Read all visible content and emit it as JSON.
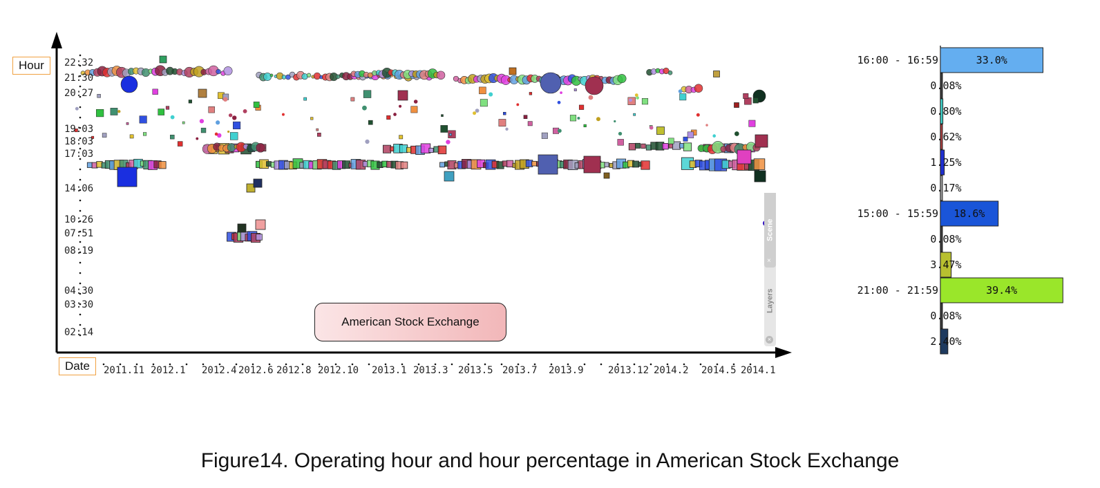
{
  "caption": "Figure14. Operating hour and hour percentage in American Stock Exchange",
  "labels": {
    "hour": "Hour",
    "date": "Date",
    "exchange": "American Stock Exchange"
  },
  "panel": {
    "scene": "Scene",
    "layers": "Layers",
    "close": "×"
  },
  "chart_data": [
    {
      "type": "scatter",
      "xlabel": "Date",
      "ylabel": "Hour",
      "x_ticks": [
        "2011.11",
        "2012.1",
        "2012.4",
        "2012.6",
        "2012.8",
        "2012.10",
        "2013.1",
        "2013.3",
        "2013.5",
        "2013.7",
        "2013.9",
        "2013.12",
        "2014.2",
        "2014.5",
        "2014.1"
      ],
      "y_ticks": [
        "22:32",
        "21:30",
        "20:27",
        "19:03",
        "18:03",
        "17:03",
        "14:06",
        "10:26",
        "07:51",
        "08:19",
        "04:30",
        "03:30",
        "02:14"
      ],
      "annotation": "American Stock Exchange",
      "series": [
        {
          "cluster": "21:30",
          "date_range": [
            "2011.11",
            "2014.1"
          ],
          "marker": "circle"
        },
        {
          "cluster": "17:03",
          "date_range": [
            "2011.11",
            "2014.1"
          ],
          "marker": "square"
        },
        {
          "cluster": "07:51",
          "date_range": [
            "2012.4",
            "2012.6"
          ],
          "marker": "square"
        }
      ]
    },
    {
      "type": "bar",
      "orientation": "horizontal",
      "categories": [
        "16:00 - 16:59",
        "",
        "",
        "",
        "",
        "",
        "15:00 - 15:59",
        "",
        "",
        "21:00 - 21:59",
        "",
        ""
      ],
      "values": [
        33.0,
        0.08,
        0.8,
        0.62,
        1.25,
        0.17,
        18.6,
        0.08,
        3.47,
        39.4,
        0.08,
        2.4
      ],
      "value_labels": [
        "33.0%",
        "0.08%",
        "0.80%",
        "0.62%",
        "1.25%",
        "0.17%",
        "18.6%",
        "0.08%",
        "3.47%",
        "39.4%",
        "0.08%",
        "2.40%"
      ],
      "colors": [
        "#64aef0",
        "#3a3a3a",
        "#3fd0c8",
        "#b04040",
        "#2030d0",
        "#a0a0a0",
        "#1a55d8",
        "#3a3a3a",
        "#b8c030",
        "#9ae62a",
        "#3a3a3a",
        "#1e3a5f"
      ]
    }
  ]
}
